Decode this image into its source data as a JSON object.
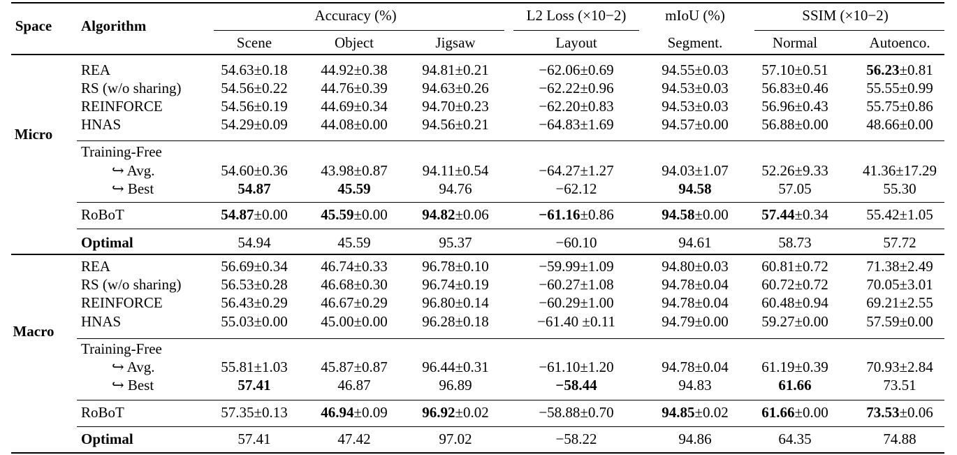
{
  "header": {
    "space": "Space",
    "algorithm": "Algorithm",
    "groups": [
      "Accuracy (%)",
      "L2 Loss (×10−2)",
      "mIoU (%)",
      "SSIM (×10−2)"
    ],
    "columns": [
      "Scene",
      "Object",
      "Jigsaw",
      "Layout",
      "Segment.",
      "Normal",
      "Autoenco."
    ]
  },
  "sections": [
    {
      "name": "Micro",
      "rows": [
        {
          "label": "REA",
          "cells": [
            [
              "",
              "54.63±0.18"
            ],
            [
              "",
              "44.92±0.38"
            ],
            [
              "",
              "94.81±0.21"
            ],
            [
              "",
              "−62.06±0.69"
            ],
            [
              "",
              "94.55±0.03"
            ],
            [
              "",
              "57.10±0.51"
            ],
            [
              "56.23",
              "±0.81"
            ]
          ]
        },
        {
          "label": "RS (w/o sharing)",
          "cells": [
            [
              "",
              "54.56±0.22"
            ],
            [
              "",
              "44.76±0.39"
            ],
            [
              "",
              "94.63±0.26"
            ],
            [
              "",
              "−62.22±0.96"
            ],
            [
              "",
              "94.53±0.03"
            ],
            [
              "",
              "56.83±0.46"
            ],
            [
              "",
              "55.55±0.99"
            ]
          ]
        },
        {
          "label": "REINFORCE",
          "cells": [
            [
              "",
              "54.56±0.19"
            ],
            [
              "",
              "44.69±0.34"
            ],
            [
              "",
              "94.70±0.23"
            ],
            [
              "",
              "−62.20±0.83"
            ],
            [
              "",
              "94.53±0.03"
            ],
            [
              "",
              "56.96±0.43"
            ],
            [
              "",
              "55.75±0.86"
            ]
          ]
        },
        {
          "label": "HNAS",
          "cells": [
            [
              "",
              "54.29±0.09"
            ],
            [
              "",
              "44.08±0.00"
            ],
            [
              "",
              "94.56±0.21"
            ],
            [
              "",
              "−64.83±1.69"
            ],
            [
              "",
              "94.57±0.00"
            ],
            [
              "",
              "56.88±0.00"
            ],
            [
              "",
              "48.66±0.00"
            ]
          ]
        },
        {
          "label": "Training-Free",
          "cells": []
        },
        {
          "label": "↪ Avg.",
          "cells": [
            [
              "",
              "54.60±0.36"
            ],
            [
              "",
              "43.98±0.87"
            ],
            [
              "",
              "94.11±0.54"
            ],
            [
              "",
              "−64.27±1.27"
            ],
            [
              "",
              "94.03±1.07"
            ],
            [
              "",
              "52.26±9.33"
            ],
            [
              "",
              "41.36±17.29"
            ]
          ]
        },
        {
          "label": "↪ Best",
          "cells": [
            [
              "54.87",
              ""
            ],
            [
              "45.59",
              ""
            ],
            [
              "",
              "94.76"
            ],
            [
              "",
              "−62.12"
            ],
            [
              "94.58",
              ""
            ],
            [
              "",
              "57.05"
            ],
            [
              "",
              "55.30"
            ]
          ]
        },
        {
          "label": "RoBoT",
          "cells": [
            [
              "54.87",
              "±0.00"
            ],
            [
              "45.59",
              "±0.00"
            ],
            [
              "94.82",
              "±0.06"
            ],
            [
              "−61.16",
              "±0.86"
            ],
            [
              "94.58",
              "±0.00"
            ],
            [
              "57.44",
              "±0.34"
            ],
            [
              "",
              "55.42±1.05"
            ]
          ]
        },
        {
          "label": "Optimal",
          "cells": [
            [
              "",
              "54.94"
            ],
            [
              "",
              "45.59"
            ],
            [
              "",
              "95.37"
            ],
            [
              "",
              "−60.10"
            ],
            [
              "",
              "94.61"
            ],
            [
              "",
              "58.73"
            ],
            [
              "",
              "57.72"
            ]
          ]
        }
      ]
    },
    {
      "name": "Macro",
      "rows": [
        {
          "label": "REA",
          "cells": [
            [
              "",
              "56.69±0.34"
            ],
            [
              "",
              "46.74±0.33"
            ],
            [
              "",
              "96.78±0.10"
            ],
            [
              "",
              "−59.99±1.09"
            ],
            [
              "",
              "94.80±0.03"
            ],
            [
              "",
              "60.81±0.72"
            ],
            [
              "",
              "71.38±2.49"
            ]
          ]
        },
        {
          "label": "RS (w/o sharing)",
          "cells": [
            [
              "",
              "56.53±0.28"
            ],
            [
              "",
              "46.68±0.30"
            ],
            [
              "",
              "96.74±0.19"
            ],
            [
              "",
              "−60.27±1.08"
            ],
            [
              "",
              "94.78±0.04"
            ],
            [
              "",
              "60.72±0.72"
            ],
            [
              "",
              "70.05±3.01"
            ]
          ]
        },
        {
          "label": "REINFORCE",
          "cells": [
            [
              "",
              "56.43±0.29"
            ],
            [
              "",
              "46.67±0.29"
            ],
            [
              "",
              "96.80±0.14"
            ],
            [
              "",
              "−60.29±1.00"
            ],
            [
              "",
              "94.78±0.04"
            ],
            [
              "",
              "60.48±0.94"
            ],
            [
              "",
              "69.21±2.55"
            ]
          ]
        },
        {
          "label": "HNAS",
          "cells": [
            [
              "",
              "55.03±0.00"
            ],
            [
              "",
              "45.00±0.00"
            ],
            [
              "",
              "96.28±0.18"
            ],
            [
              "",
              "−61.40 ±0.11"
            ],
            [
              "",
              "94.79±0.00"
            ],
            [
              "",
              "59.27±0.00"
            ],
            [
              "",
              "57.59±0.00"
            ]
          ]
        },
        {
          "label": "Training-Free",
          "cells": []
        },
        {
          "label": "↪ Avg.",
          "cells": [
            [
              "",
              "55.81±1.03"
            ],
            [
              "",
              "45.87±0.87"
            ],
            [
              "",
              "96.44±0.31"
            ],
            [
              "",
              "−61.10±1.20"
            ],
            [
              "",
              "94.78±0.04"
            ],
            [
              "",
              "61.19±0.39"
            ],
            [
              "",
              "70.93±2.84"
            ]
          ]
        },
        {
          "label": "↪ Best",
          "cells": [
            [
              "57.41",
              ""
            ],
            [
              "",
              "46.87"
            ],
            [
              "",
              "96.89"
            ],
            [
              "−58.44",
              ""
            ],
            [
              "",
              "94.83"
            ],
            [
              "61.66",
              ""
            ],
            [
              "",
              "73.51"
            ]
          ]
        },
        {
          "label": "RoBoT",
          "cells": [
            [
              "",
              "57.35±0.13"
            ],
            [
              "46.94",
              "±0.09"
            ],
            [
              "96.92",
              "±0.02"
            ],
            [
              "",
              "−58.88±0.70"
            ],
            [
              "94.85",
              "±0.02"
            ],
            [
              "61.66",
              "±0.00"
            ],
            [
              "73.53",
              "±0.06"
            ]
          ]
        },
        {
          "label": "Optimal",
          "cells": [
            [
              "",
              "57.41"
            ],
            [
              "",
              "47.42"
            ],
            [
              "",
              "97.02"
            ],
            [
              "",
              "−58.22"
            ],
            [
              "",
              "94.86"
            ],
            [
              "",
              "64.35"
            ],
            [
              "",
              "74.88"
            ]
          ]
        }
      ]
    }
  ]
}
